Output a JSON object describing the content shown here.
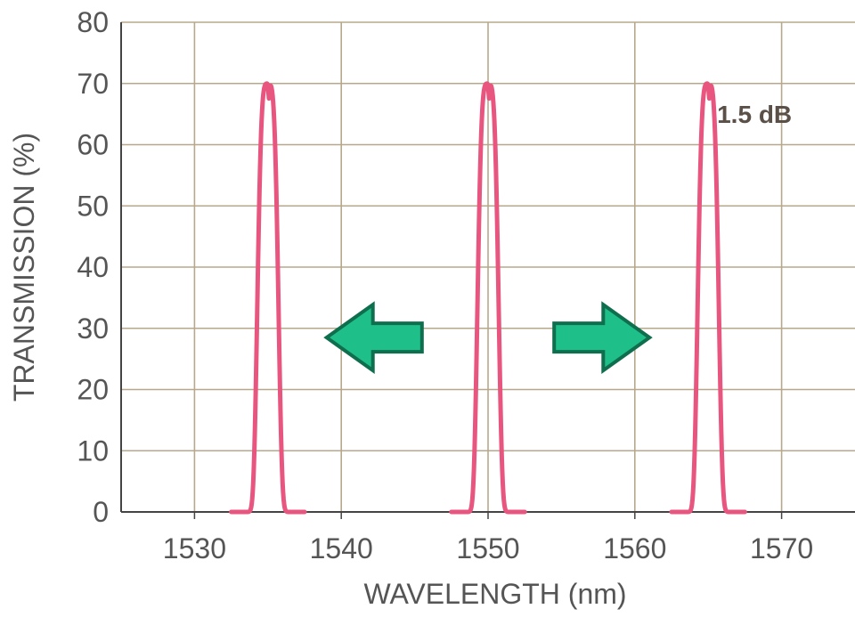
{
  "chart_data": {
    "type": "line",
    "title": "",
    "xlabel": "WAVELENGTH (nm)",
    "ylabel": "TRANSMISSION (%)",
    "xlim": [
      1525,
      1575
    ],
    "ylim": [
      0,
      80
    ],
    "xticks": [
      1530,
      1540,
      1550,
      1560,
      1570
    ],
    "yticks": [
      0,
      10,
      20,
      30,
      40,
      50,
      60,
      70,
      80
    ],
    "grid": true,
    "series": [
      {
        "peaks_nm": [
          1535,
          1550,
          1565
        ],
        "peak_value": 70,
        "dip_value": 67.5,
        "base_halfwidth_nm": 2.5,
        "color": "#e8557e"
      }
    ],
    "annotations": [
      {
        "text": "1.5 dB",
        "x": 1569,
        "y": 65
      }
    ],
    "arrows": [
      {
        "direction": "left",
        "x_from": 1545.5,
        "x_to": 1539,
        "y": 28.5,
        "color": "#1fbf8a"
      },
      {
        "direction": "right",
        "x_from": 1554.5,
        "x_to": 1561,
        "y": 28.5,
        "color": "#1fbf8a"
      }
    ],
    "colors": {
      "grid": "#b7a88c",
      "axis": "#444444",
      "curve": "#e8557e",
      "arrow_fill": "#1fbf8a",
      "arrow_stroke": "#0f6e4d"
    }
  }
}
